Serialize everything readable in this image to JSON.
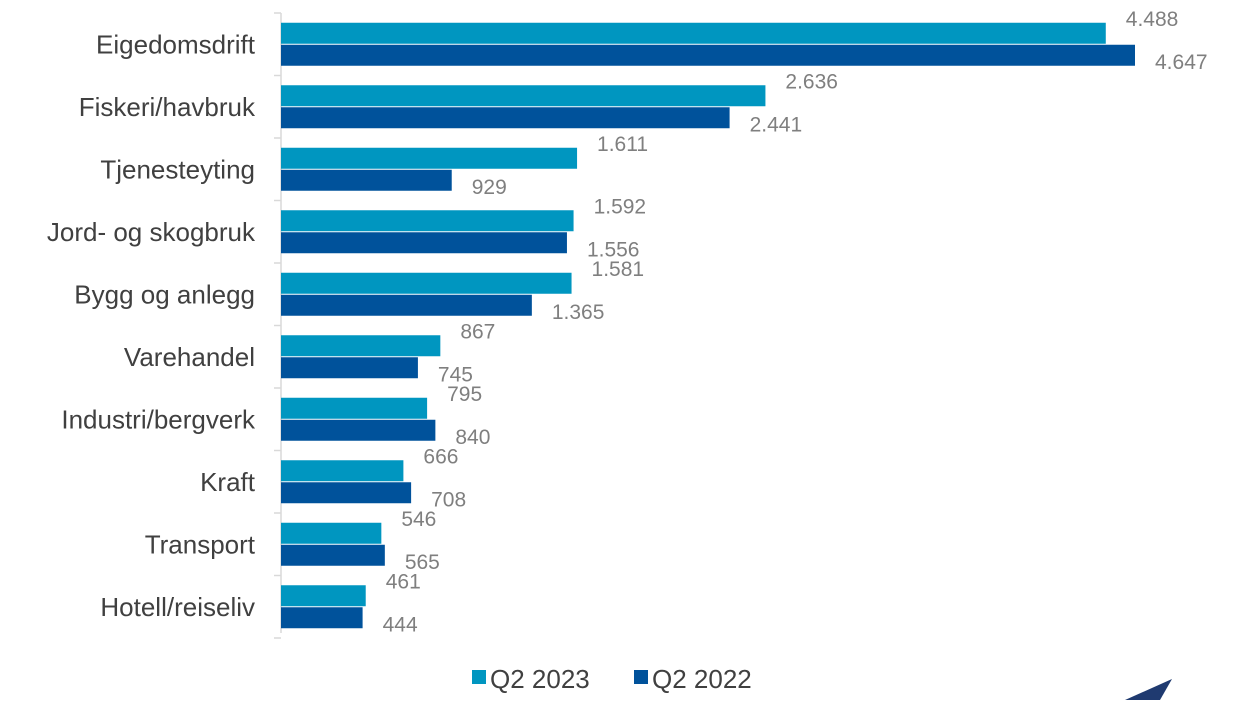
{
  "chart_data": {
    "type": "bar",
    "orientation": "horizontal",
    "categories": [
      "Eigedomsdrift",
      "Fiskeri/havbruk",
      "Tjenesteyting",
      "Jord- og skogbruk",
      "Bygg og anlegg",
      "Varehandel",
      "Industri/bergverk",
      "Kraft",
      "Transport",
      "Hotell/reiseliv"
    ],
    "series": [
      {
        "name": "Q2 2023",
        "color": "#0096c0",
        "values": [
          4488,
          2636,
          1611,
          1592,
          1581,
          867,
          795,
          666,
          546,
          461
        ],
        "labels": [
          "4.488",
          "2.636",
          "1.611",
          "1.592",
          "1.581",
          "867",
          "795",
          "666",
          "546",
          "461"
        ]
      },
      {
        "name": "Q2 2022",
        "color": "#00529b",
        "values": [
          4647,
          2441,
          929,
          1556,
          1365,
          745,
          840,
          708,
          565,
          444
        ],
        "labels": [
          "4.647",
          "2.441",
          "929",
          "1.556",
          "1.365",
          "745",
          "840",
          "708",
          "565",
          "444"
        ]
      }
    ],
    "xlim": [
      0,
      4647
    ],
    "grid": false,
    "legend_position": "bottom"
  },
  "decor": {
    "corner_shape_color": "#1f3a70"
  }
}
